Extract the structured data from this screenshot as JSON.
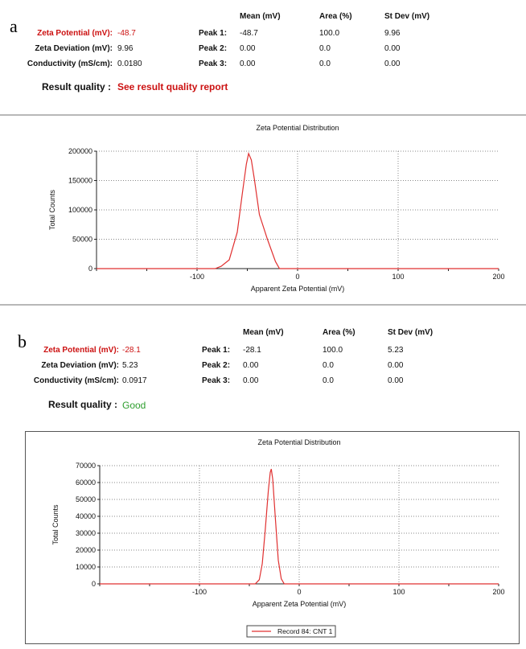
{
  "panels": [
    {
      "letter": "a",
      "summary": {
        "zeta_potential": {
          "label": "Zeta Potential (mV):",
          "value": "-48.7"
        },
        "zeta_deviation": {
          "label": "Zeta Deviation (mV):",
          "value": "9.96"
        },
        "conductivity": {
          "label": "Conductivity (mS/cm):",
          "value": "0.0180"
        }
      },
      "peaks": {
        "headers": [
          "Mean (mV)",
          "Area (%)",
          "St Dev (mV)"
        ],
        "rows": [
          {
            "label": "Peak 1:",
            "mean": "-48.7",
            "area": "100.0",
            "stdev": "9.96"
          },
          {
            "label": "Peak 2:",
            "mean": "0.00",
            "area": "0.0",
            "stdev": "0.00"
          },
          {
            "label": "Peak 3:",
            "mean": "0.00",
            "area": "0.0",
            "stdev": "0.00"
          }
        ]
      },
      "result_quality": {
        "label": "Result quality :",
        "value": "See result quality report",
        "color": "#cc1111"
      }
    },
    {
      "letter": "b",
      "summary": {
        "zeta_potential": {
          "label": "Zeta Potential (mV):",
          "value": "-28.1"
        },
        "zeta_deviation": {
          "label": "Zeta Deviation (mV):",
          "value": "5.23"
        },
        "conductivity": {
          "label": "Conductivity (mS/cm):",
          "value": "0.0917"
        }
      },
      "peaks": {
        "headers": [
          "Mean (mV)",
          "Area (%)",
          "St Dev (mV)"
        ],
        "rows": [
          {
            "label": "Peak 1:",
            "mean": "-28.1",
            "area": "100.0",
            "stdev": "5.23"
          },
          {
            "label": "Peak 2:",
            "mean": "0.00",
            "area": "0.0",
            "stdev": "0.00"
          },
          {
            "label": "Peak 3:",
            "mean": "0.00",
            "area": "0.0",
            "stdev": "0.00"
          }
        ]
      },
      "result_quality": {
        "label": "Result quality :",
        "value": "Good",
        "color": "#2e9e2e"
      }
    }
  ],
  "chart_data": [
    {
      "type": "line",
      "title": "Zeta Potential Distribution",
      "xlabel": "Apparent Zeta Potential (mV)",
      "ylabel": "Total Counts",
      "xlim": [
        -200,
        200
      ],
      "ylim": [
        0,
        200000
      ],
      "xticks": [
        -100,
        0,
        100,
        200
      ],
      "yticks": [
        0,
        50000,
        100000,
        150000,
        200000
      ],
      "grid": true,
      "line_color": "#e03030",
      "series": [
        {
          "x": [
            -200,
            -82,
            -76,
            -68,
            -60,
            -55,
            -51,
            -48.7,
            -46,
            -43,
            -38,
            -30,
            -22,
            -18,
            200
          ],
          "y": [
            0,
            0,
            4000,
            15000,
            62000,
            128000,
            178000,
            196000,
            185000,
            152000,
            92000,
            50000,
            12000,
            0,
            0
          ]
        }
      ]
    },
    {
      "type": "line",
      "title": "Zeta Potential Distribution",
      "xlabel": "Apparent Zeta Potential (mV)",
      "ylabel": "Total Counts",
      "xlim": [
        -200,
        200
      ],
      "ylim": [
        0,
        70000
      ],
      "xticks": [
        -100,
        0,
        100,
        200
      ],
      "yticks": [
        0,
        10000,
        20000,
        30000,
        40000,
        50000,
        60000,
        70000
      ],
      "grid": true,
      "line_color": "#e03030",
      "legend": {
        "position": "bottom",
        "entries": [
          "Record 84: CNT 1"
        ]
      },
      "series": [
        {
          "name": "Record 84: CNT 1",
          "x": [
            -200,
            -44,
            -40,
            -37,
            -34,
            -31,
            -29,
            -28,
            -26.5,
            -24,
            -21,
            -18,
            -15,
            200
          ],
          "y": [
            0,
            0,
            2500,
            12000,
            32000,
            55000,
            66000,
            68000,
            62000,
            40000,
            14000,
            3000,
            0,
            0
          ]
        }
      ]
    }
  ]
}
